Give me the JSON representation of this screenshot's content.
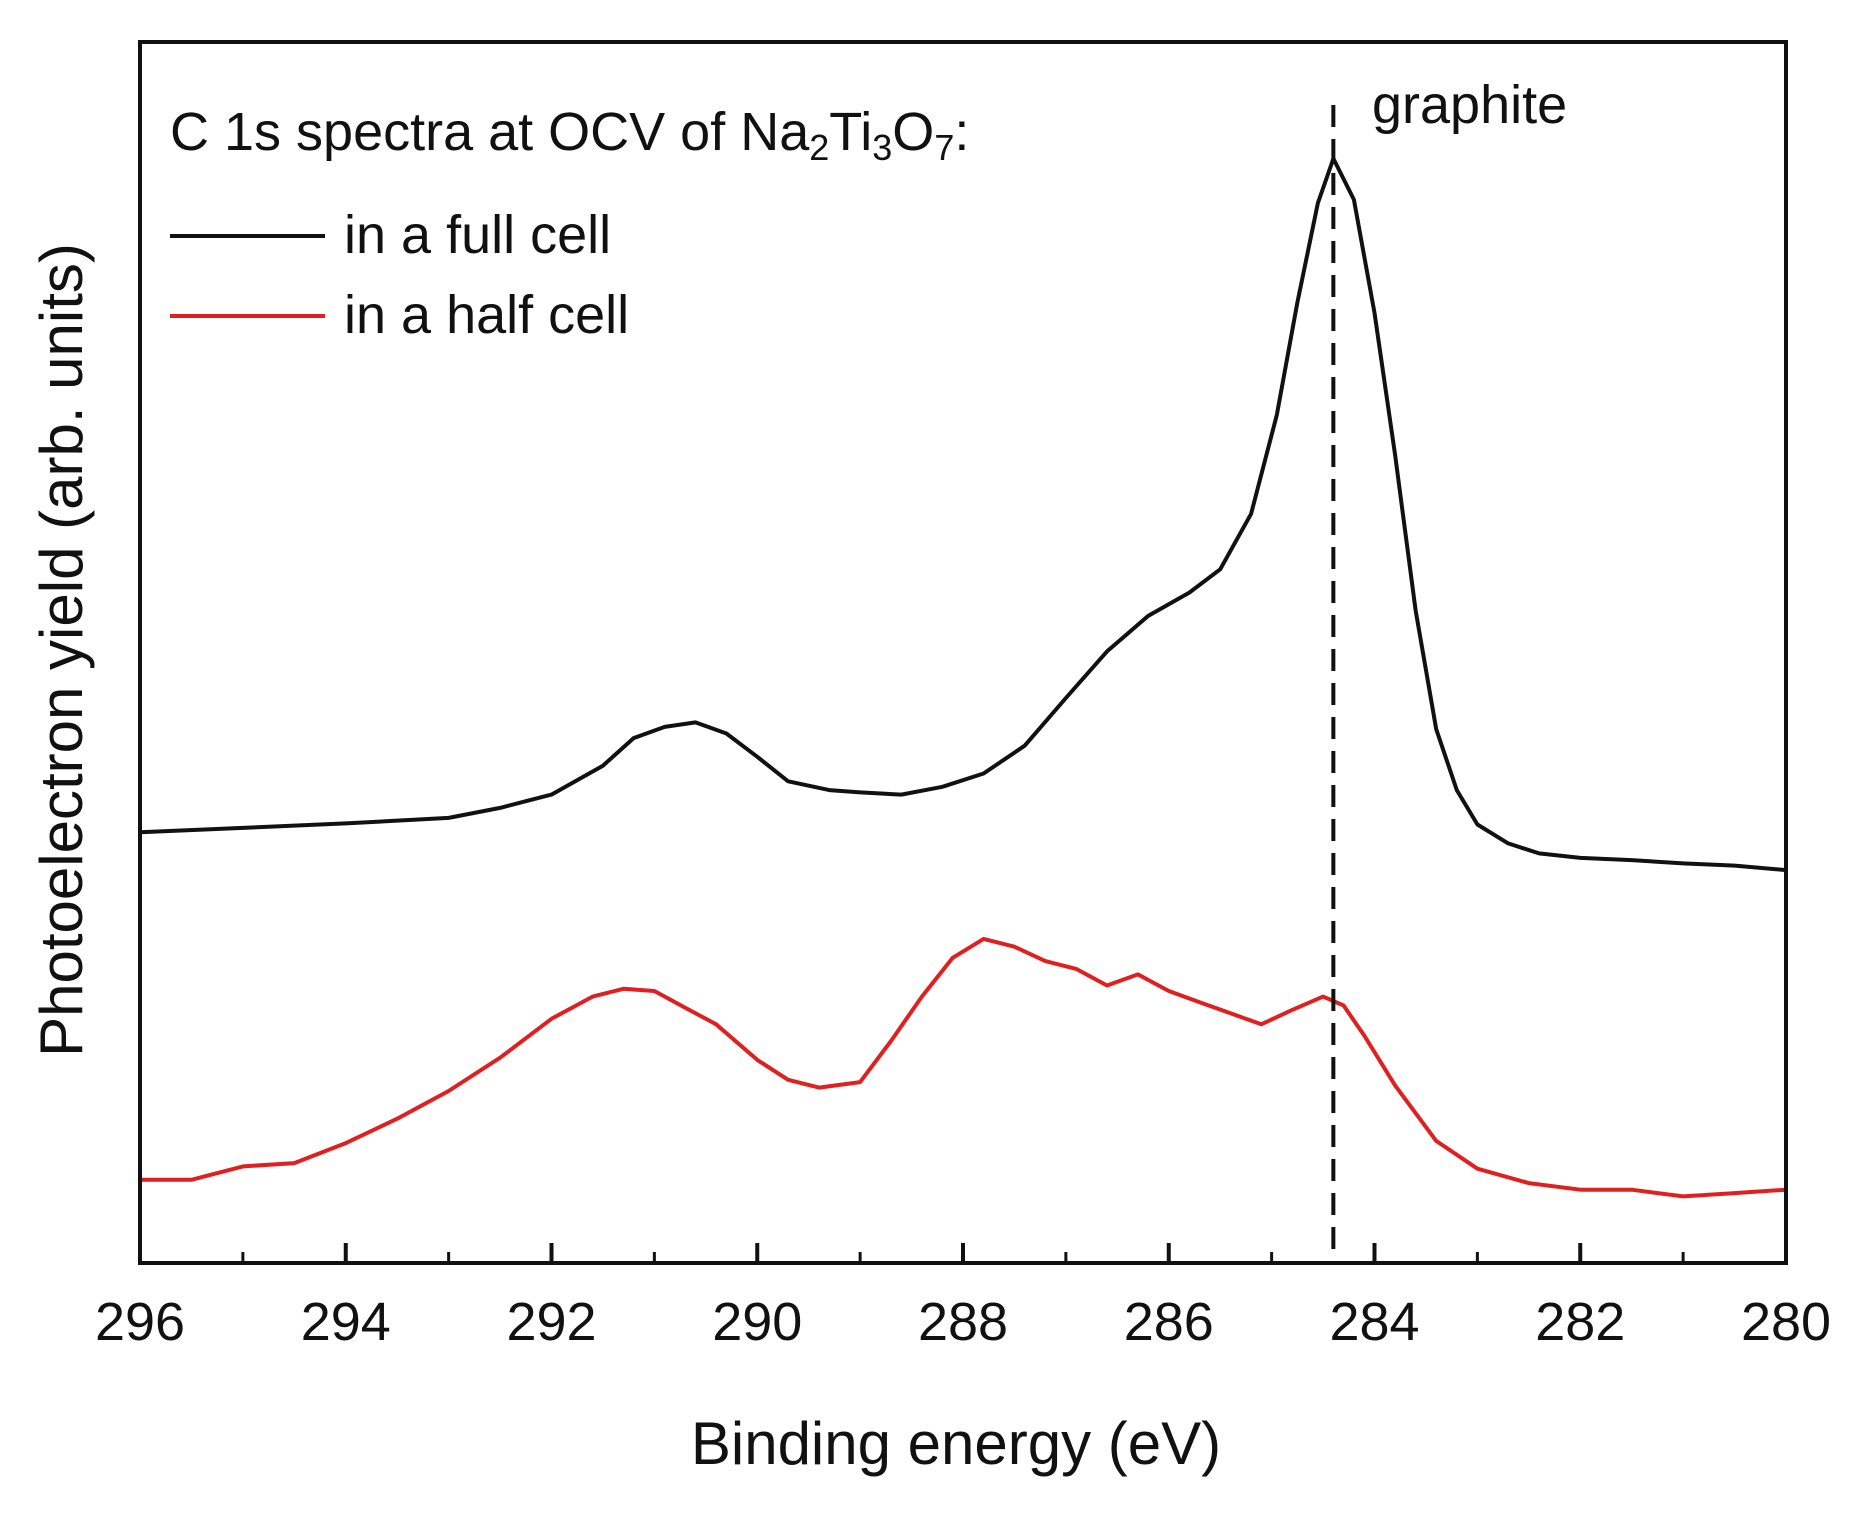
{
  "chart_data": {
    "type": "line",
    "title_parts": [
      {
        "t": "C 1s spectra at OCV of Na",
        "sub": false
      },
      {
        "t": "2",
        "sub": true
      },
      {
        "t": "Ti",
        "sub": false
      },
      {
        "t": "3",
        "sub": true
      },
      {
        "t": "O",
        "sub": false
      },
      {
        "t": "7",
        "sub": true
      },
      {
        "t": ":",
        "sub": false
      }
    ],
    "xlabel": "Binding energy (eV)",
    "ylabel": "Photoelectron yield (arb. units)",
    "xlim": [
      296,
      280
    ],
    "ylim": [
      0,
      1.1
    ],
    "grid": false,
    "x_ticks": [
      "296",
      "294",
      "292",
      "290",
      "288",
      "286",
      "284",
      "282",
      "280"
    ],
    "x_tick_values": [
      296,
      294,
      292,
      290,
      288,
      286,
      284,
      282,
      280
    ],
    "x_minor_tick_values": [
      295,
      293,
      291,
      289,
      287,
      285,
      283,
      281
    ],
    "legend_position": "top-left",
    "series": [
      {
        "name": "in a full cell",
        "color": "#111111",
        "x": [
          296,
          295,
          294,
          293,
          292.5,
          292,
          291.5,
          291.2,
          290.9,
          290.6,
          290.3,
          290,
          289.7,
          289.3,
          289,
          288.6,
          288.2,
          287.8,
          287.4,
          287,
          286.6,
          286.2,
          285.8,
          285.5,
          285.2,
          284.95,
          284.75,
          284.55,
          284.4,
          284.2,
          284,
          283.8,
          283.6,
          283.4,
          283.2,
          283,
          282.7,
          282.4,
          282,
          281.5,
          281,
          280.5,
          280
        ],
        "y": [
          0.388,
          0.392,
          0.396,
          0.401,
          0.41,
          0.422,
          0.448,
          0.473,
          0.483,
          0.487,
          0.477,
          0.456,
          0.434,
          0.426,
          0.424,
          0.422,
          0.429,
          0.441,
          0.466,
          0.509,
          0.551,
          0.583,
          0.604,
          0.625,
          0.675,
          0.764,
          0.865,
          0.955,
          0.995,
          0.958,
          0.856,
          0.728,
          0.588,
          0.481,
          0.426,
          0.395,
          0.378,
          0.369,
          0.365,
          0.363,
          0.36,
          0.358,
          0.354
        ]
      },
      {
        "name": "in a half cell",
        "color": "#e02020",
        "x": [
          296,
          295.5,
          295,
          294.5,
          294,
          293.5,
          293,
          292.5,
          292,
          291.6,
          291.3,
          291,
          290.7,
          290.4,
          290,
          289.7,
          289.4,
          289,
          288.7,
          288.4,
          288.1,
          287.8,
          287.5,
          287.2,
          286.9,
          286.6,
          286.3,
          286,
          285.7,
          285.4,
          285.1,
          284.8,
          284.5,
          284.3,
          284.1,
          283.8,
          283.4,
          283,
          282.5,
          282,
          281.5,
          281,
          280.5,
          280
        ],
        "y": [
          0.075,
          0.075,
          0.087,
          0.09,
          0.108,
          0.13,
          0.155,
          0.185,
          0.22,
          0.24,
          0.247,
          0.245,
          0.23,
          0.215,
          0.183,
          0.165,
          0.158,
          0.163,
          0.2,
          0.24,
          0.275,
          0.292,
          0.285,
          0.272,
          0.265,
          0.25,
          0.26,
          0.245,
          0.235,
          0.225,
          0.215,
          0.228,
          0.24,
          0.232,
          0.205,
          0.16,
          0.11,
          0.085,
          0.072,
          0.066,
          0.066,
          0.06,
          0.063,
          0.066
        ]
      }
    ],
    "annotations": [
      {
        "type": "vline",
        "x": 284.4,
        "style": "dashed",
        "label": "graphite"
      }
    ]
  }
}
